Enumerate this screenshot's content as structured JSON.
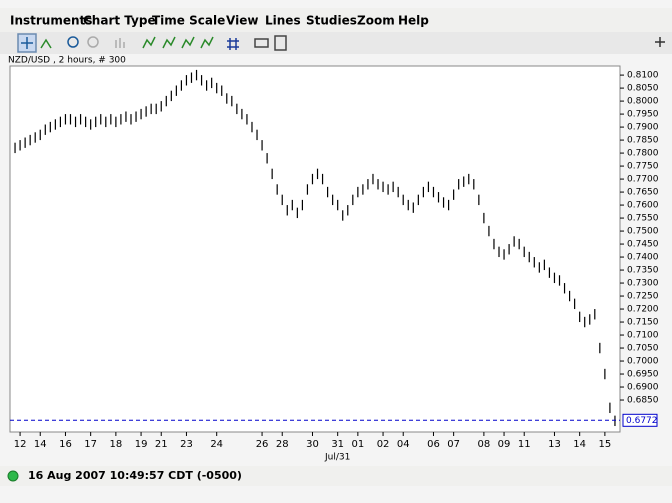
{
  "menu": [
    "Instruments",
    "Chart Type",
    "Time Scale",
    "View",
    "Lines",
    "Studies",
    "Zoom",
    "Help"
  ],
  "chart_data": {
    "type": "ohlc",
    "title": "NZD/USD , 2 hours, # 300",
    "color": "#000000",
    "high": [
      0.784,
      0.785,
      0.786,
      0.787,
      0.788,
      0.789,
      0.791,
      0.792,
      0.793,
      0.794,
      0.795,
      0.795,
      0.794,
      0.795,
      0.794,
      0.793,
      0.794,
      0.795,
      0.794,
      0.795,
      0.794,
      0.795,
      0.796,
      0.795,
      0.796,
      0.797,
      0.798,
      0.799,
      0.799,
      0.8,
      0.802,
      0.804,
      0.806,
      0.808,
      0.81,
      0.811,
      0.812,
      0.81,
      0.808,
      0.809,
      0.807,
      0.806,
      0.803,
      0.802,
      0.799,
      0.797,
      0.795,
      0.792,
      0.789,
      0.785,
      0.78,
      0.774,
      0.768,
      0.764,
      0.76,
      0.762,
      0.759,
      0.762,
      0.768,
      0.772,
      0.774,
      0.772,
      0.767,
      0.764,
      0.762,
      0.758,
      0.76,
      0.764,
      0.767,
      0.768,
      0.77,
      0.772,
      0.77,
      0.769,
      0.768,
      0.769,
      0.767,
      0.764,
      0.762,
      0.761,
      0.764,
      0.767,
      0.769,
      0.767,
      0.765,
      0.763,
      0.762,
      0.766,
      0.77,
      0.771,
      0.772,
      0.77,
      0.764,
      0.757,
      0.752,
      0.747,
      0.744,
      0.743,
      0.745,
      0.748,
      0.747,
      0.744,
      0.742,
      0.74,
      0.738,
      0.739,
      0.736,
      0.734,
      0.733,
      0.73,
      0.727,
      0.724,
      0.719,
      0.717,
      0.718,
      0.72,
      0.707,
      0.697,
      0.684,
      0.679
    ],
    "low": [
      0.78,
      0.781,
      0.782,
      0.783,
      0.784,
      0.785,
      0.787,
      0.788,
      0.789,
      0.79,
      0.791,
      0.791,
      0.79,
      0.791,
      0.79,
      0.789,
      0.79,
      0.791,
      0.79,
      0.791,
      0.79,
      0.791,
      0.792,
      0.791,
      0.792,
      0.793,
      0.794,
      0.795,
      0.795,
      0.796,
      0.798,
      0.8,
      0.802,
      0.804,
      0.806,
      0.807,
      0.808,
      0.806,
      0.804,
      0.805,
      0.803,
      0.802,
      0.799,
      0.798,
      0.795,
      0.793,
      0.791,
      0.788,
      0.785,
      0.781,
      0.776,
      0.77,
      0.764,
      0.76,
      0.756,
      0.758,
      0.755,
      0.758,
      0.764,
      0.768,
      0.77,
      0.768,
      0.763,
      0.76,
      0.758,
      0.754,
      0.756,
      0.76,
      0.763,
      0.764,
      0.766,
      0.768,
      0.766,
      0.765,
      0.764,
      0.765,
      0.763,
      0.76,
      0.758,
      0.757,
      0.76,
      0.763,
      0.765,
      0.763,
      0.761,
      0.759,
      0.758,
      0.762,
      0.766,
      0.767,
      0.768,
      0.766,
      0.76,
      0.753,
      0.748,
      0.743,
      0.74,
      0.739,
      0.741,
      0.744,
      0.743,
      0.74,
      0.738,
      0.736,
      0.734,
      0.735,
      0.732,
      0.73,
      0.729,
      0.726,
      0.723,
      0.72,
      0.715,
      0.713,
      0.714,
      0.716,
      0.703,
      0.693,
      0.68,
      0.675
    ],
    "xlim": [
      -1,
      120
    ],
    "xticks": [
      {
        "value": 1,
        "label": "12"
      },
      {
        "value": 5,
        "label": "14"
      },
      {
        "value": 10,
        "label": "16"
      },
      {
        "value": 15,
        "label": "17"
      },
      {
        "value": 20,
        "label": "18"
      },
      {
        "value": 25,
        "label": "19"
      },
      {
        "value": 29,
        "label": "21"
      },
      {
        "value": 34,
        "label": "23"
      },
      {
        "value": 40,
        "label": "24"
      },
      {
        "value": 49,
        "label": "26"
      },
      {
        "value": 53,
        "label": "28"
      },
      {
        "value": 59,
        "label": "30"
      },
      {
        "value": 64,
        "label": "31"
      },
      {
        "value": 68,
        "label": "01"
      },
      {
        "value": 73,
        "label": "02"
      },
      {
        "value": 77,
        "label": "04"
      },
      {
        "value": 83,
        "label": "06"
      },
      {
        "value": 87,
        "label": "07"
      },
      {
        "value": 93,
        "label": "08"
      },
      {
        "value": 97,
        "label": "09"
      },
      {
        "value": 101,
        "label": "11"
      },
      {
        "value": 107,
        "label": "13"
      },
      {
        "value": 112,
        "label": "14"
      },
      {
        "value": 117,
        "label": "15"
      }
    ],
    "xtick_sublabel": "Jul/31",
    "ylim": [
      0.6727,
      0.8135
    ],
    "yticks": [
      {
        "value": 0.685,
        "label": "0.6850"
      },
      {
        "value": 0.69,
        "label": "0.6900"
      },
      {
        "value": 0.695,
        "label": "0.6950"
      },
      {
        "value": 0.7,
        "label": "0.7000"
      },
      {
        "value": 0.705,
        "label": "0.7050"
      },
      {
        "value": 0.71,
        "label": "0.7100"
      },
      {
        "value": 0.715,
        "label": "0.7150"
      },
      {
        "value": 0.72,
        "label": "0.7200"
      },
      {
        "value": 0.725,
        "label": "0.7250"
      },
      {
        "value": 0.73,
        "label": "0.7300"
      },
      {
        "value": 0.735,
        "label": "0.7350"
      },
      {
        "value": 0.74,
        "label": "0.7400"
      },
      {
        "value": 0.745,
        "label": "0.7450"
      },
      {
        "value": 0.75,
        "label": "0.7500"
      },
      {
        "value": 0.755,
        "label": "0.7550"
      },
      {
        "value": 0.76,
        "label": "0.7600"
      },
      {
        "value": 0.765,
        "label": "0.7650"
      },
      {
        "value": 0.77,
        "label": "0.7700"
      },
      {
        "value": 0.775,
        "label": "0.7750"
      },
      {
        "value": 0.78,
        "label": "0.7800"
      },
      {
        "value": 0.785,
        "label": "0.7850"
      },
      {
        "value": 0.79,
        "label": "0.7900"
      },
      {
        "value": 0.795,
        "label": "0.7950"
      },
      {
        "value": 0.8,
        "label": "0.8000"
      },
      {
        "value": 0.805,
        "label": "0.8050"
      },
      {
        "value": 0.81,
        "label": "0.8100"
      }
    ],
    "current_price": 0.6772,
    "current_price_color": "#0000cc"
  },
  "status": {
    "text": "16 Aug 2007 10:49:57  CDT (-0500)"
  }
}
